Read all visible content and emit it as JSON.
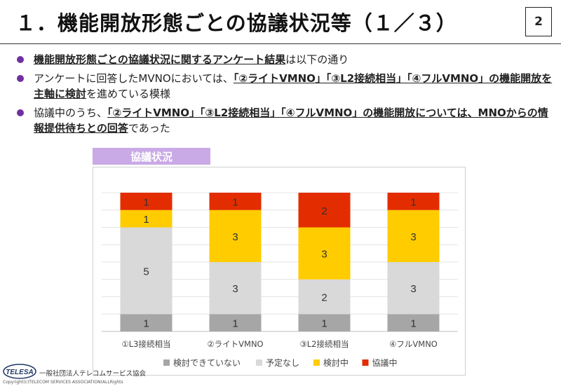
{
  "header": {
    "title": "１．機能開放形態ごとの協議状況等（１／３）",
    "page_number": "2"
  },
  "bullets": [
    {
      "parts": [
        {
          "text": "機能開放形態ごとの協議状況に関するアンケート結果",
          "style": "u"
        },
        {
          "text": "は以下の通り",
          "style": ""
        }
      ]
    },
    {
      "parts": [
        {
          "text": "アンケートに回答したMVNOにおいては、",
          "style": ""
        },
        {
          "text": "「②ライトVMNO」「③L2接続相当」「④フルVMNO」の機能開放を主軸に検討",
          "style": "u"
        },
        {
          "text": "を進めている模様",
          "style": ""
        }
      ]
    },
    {
      "parts": [
        {
          "text": "協議中のうち、",
          "style": ""
        },
        {
          "text": "「②ライトVMNO」「③L2接続相当」「④フルVMNO」の機能開放については、MNOからの情報提供待ちとの回答",
          "style": "u"
        },
        {
          "text": "であった",
          "style": ""
        }
      ]
    }
  ],
  "chart_tab_label": "協議状況",
  "chart_data": {
    "type": "bar",
    "stacked": true,
    "categories": [
      "①L3接続相当",
      "②ライトVMNO",
      "③L2接続相当",
      "④フルVMNO"
    ],
    "series": [
      {
        "name": "検討できていない",
        "color": "#a6a6a6",
        "values": [
          1,
          1,
          1,
          1
        ]
      },
      {
        "name": "予定なし",
        "color": "#d9d9d9",
        "values": [
          5,
          3,
          2,
          3
        ]
      },
      {
        "name": "検討中",
        "color": "#ffcc00",
        "values": [
          1,
          3,
          3,
          3
        ]
      },
      {
        "name": "協議中",
        "color": "#e32d00",
        "values": [
          1,
          1,
          2,
          1
        ]
      }
    ],
    "ylim": [
      0,
      8
    ],
    "grid": true,
    "legend": "bottom"
  },
  "footer": {
    "logo_text": "TELESA",
    "org_name": "一般社団法人テレコムサービス協会",
    "copyright": "Copyright(c)TELECOM SERVICES ASSOCIATION(ALLRights"
  }
}
